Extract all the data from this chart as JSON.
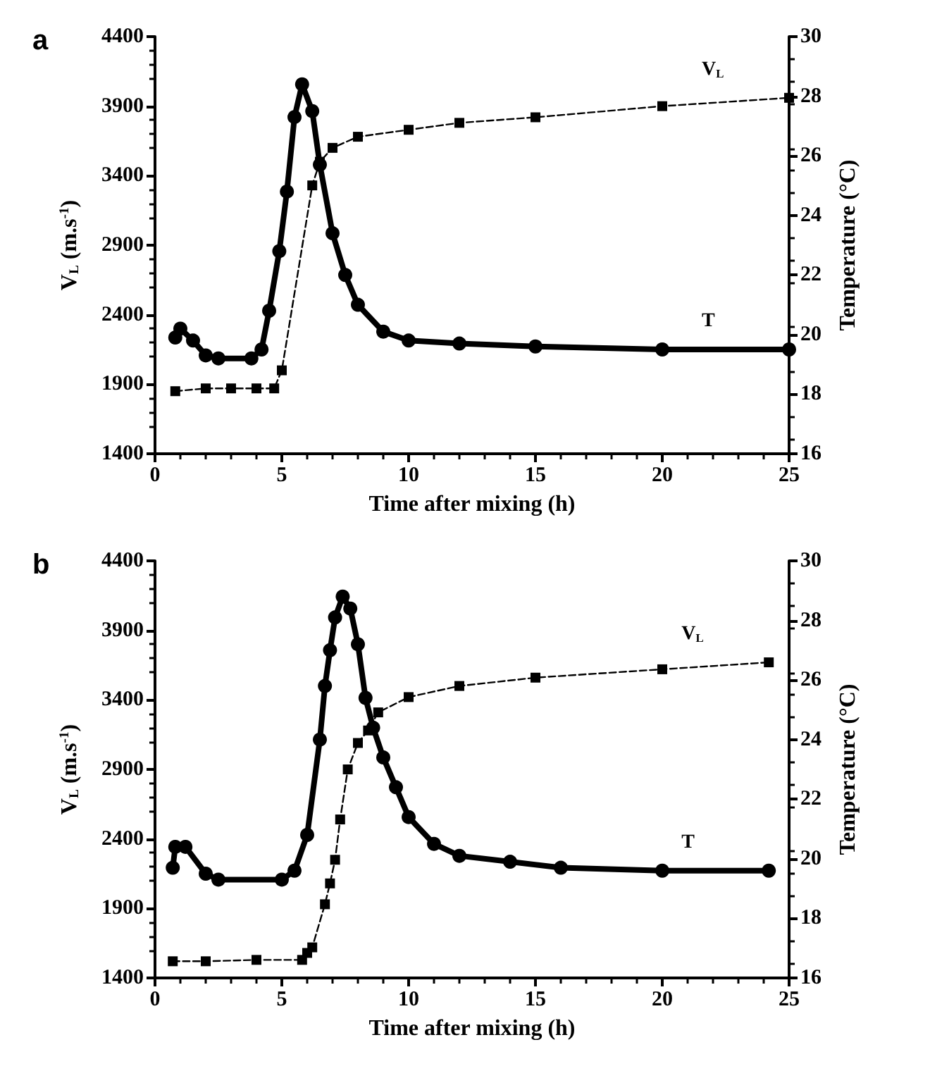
{
  "chart_data": [
    {
      "type": "line",
      "title": "a",
      "xlabel": "Time after mixing (h)",
      "ylabel": "V$_{L}$ (m.s$^{-1}$)",
      "y2label": "Temperature (°C)",
      "xlim": [
        0,
        25
      ],
      "xticks": [
        0,
        5,
        10,
        15,
        20,
        25
      ],
      "ylim": [
        1400,
        4400
      ],
      "yticks": [
        1400,
        1900,
        2400,
        2900,
        3400,
        3900,
        4400
      ],
      "y2lim": [
        16,
        30
      ],
      "y2ticks": [
        16,
        18,
        20,
        22,
        24,
        26,
        28,
        30
      ],
      "series": [
        {
          "name": "V$_{L}$",
          "color": "#000000",
          "marker": "square",
          "line_style": "dashed",
          "x": [
            0.8,
            2,
            3,
            4,
            4.7,
            5.0,
            6.2,
            6.5,
            7,
            8,
            10,
            12,
            15,
            20,
            25
          ],
          "values": [
            1850,
            1870,
            1870,
            1870,
            1870,
            2000,
            3330,
            3500,
            3600,
            3680,
            3730,
            3780,
            3820,
            3900,
            3960
          ]
        },
        {
          "name": "T",
          "color": "#000000",
          "axis": "y2",
          "marker": "circle",
          "line_style": "solid",
          "x": [
            0.8,
            1.0,
            1.5,
            2,
            2.5,
            3.8,
            4.2,
            4.5,
            4.9,
            5.2,
            5.5,
            5.8,
            6.2,
            6.5,
            7,
            7.5,
            8,
            9,
            10,
            12,
            15,
            20,
            25
          ],
          "values": [
            19.9,
            20.2,
            19.8,
            19.3,
            19.2,
            19.2,
            19.5,
            20.8,
            22.8,
            24.8,
            27.3,
            28.4,
            27.5,
            25.7,
            23.4,
            22.0,
            21.0,
            20.1,
            19.8,
            19.7,
            19.6,
            19.5,
            19.5
          ]
        }
      ]
    },
    {
      "type": "line",
      "title": "b",
      "xlabel": "Time after mixing (h)",
      "ylabel": "V$_{L}$ (m.s$^{-1}$)",
      "y2label": "Temperature (°C)",
      "xlim": [
        0,
        25
      ],
      "xticks": [
        0,
        5,
        10,
        15,
        20,
        25
      ],
      "ylim": [
        1400,
        4400
      ],
      "yticks": [
        1400,
        1900,
        2400,
        2900,
        3400,
        3900,
        4400
      ],
      "y2lim": [
        16,
        30
      ],
      "y2ticks": [
        16,
        18,
        20,
        22,
        24,
        26,
        28,
        30
      ],
      "series": [
        {
          "name": "V$_{L}$",
          "color": "#000000",
          "marker": "square",
          "line_style": "dashed",
          "x": [
            0.7,
            2,
            4,
            5.8,
            6.0,
            6.2,
            6.7,
            6.9,
            7.1,
            7.3,
            7.6,
            8.0,
            8.4,
            8.8,
            10,
            12,
            15,
            20,
            24.2
          ],
          "values": [
            1520,
            1520,
            1530,
            1530,
            1580,
            1620,
            1930,
            2080,
            2250,
            2540,
            2900,
            3090,
            3180,
            3310,
            3420,
            3500,
            3560,
            3620,
            3670
          ]
        },
        {
          "name": "T",
          "color": "#000000",
          "axis": "y2",
          "marker": "circle",
          "line_style": "solid",
          "x": [
            0.7,
            0.8,
            1.2,
            2,
            2.5,
            5,
            5.5,
            6.0,
            6.5,
            6.7,
            6.9,
            7.1,
            7.4,
            7.7,
            8.0,
            8.3,
            8.6,
            9,
            9.5,
            10,
            11,
            12,
            14,
            16,
            20,
            24.2
          ],
          "values": [
            19.7,
            20.4,
            20.4,
            19.5,
            19.3,
            19.3,
            19.6,
            20.8,
            24.0,
            25.8,
            27.0,
            28.1,
            28.8,
            28.4,
            27.2,
            25.4,
            24.4,
            23.4,
            22.4,
            21.4,
            20.5,
            20.1,
            19.9,
            19.7,
            19.6,
            19.6
          ]
        }
      ]
    }
  ]
}
